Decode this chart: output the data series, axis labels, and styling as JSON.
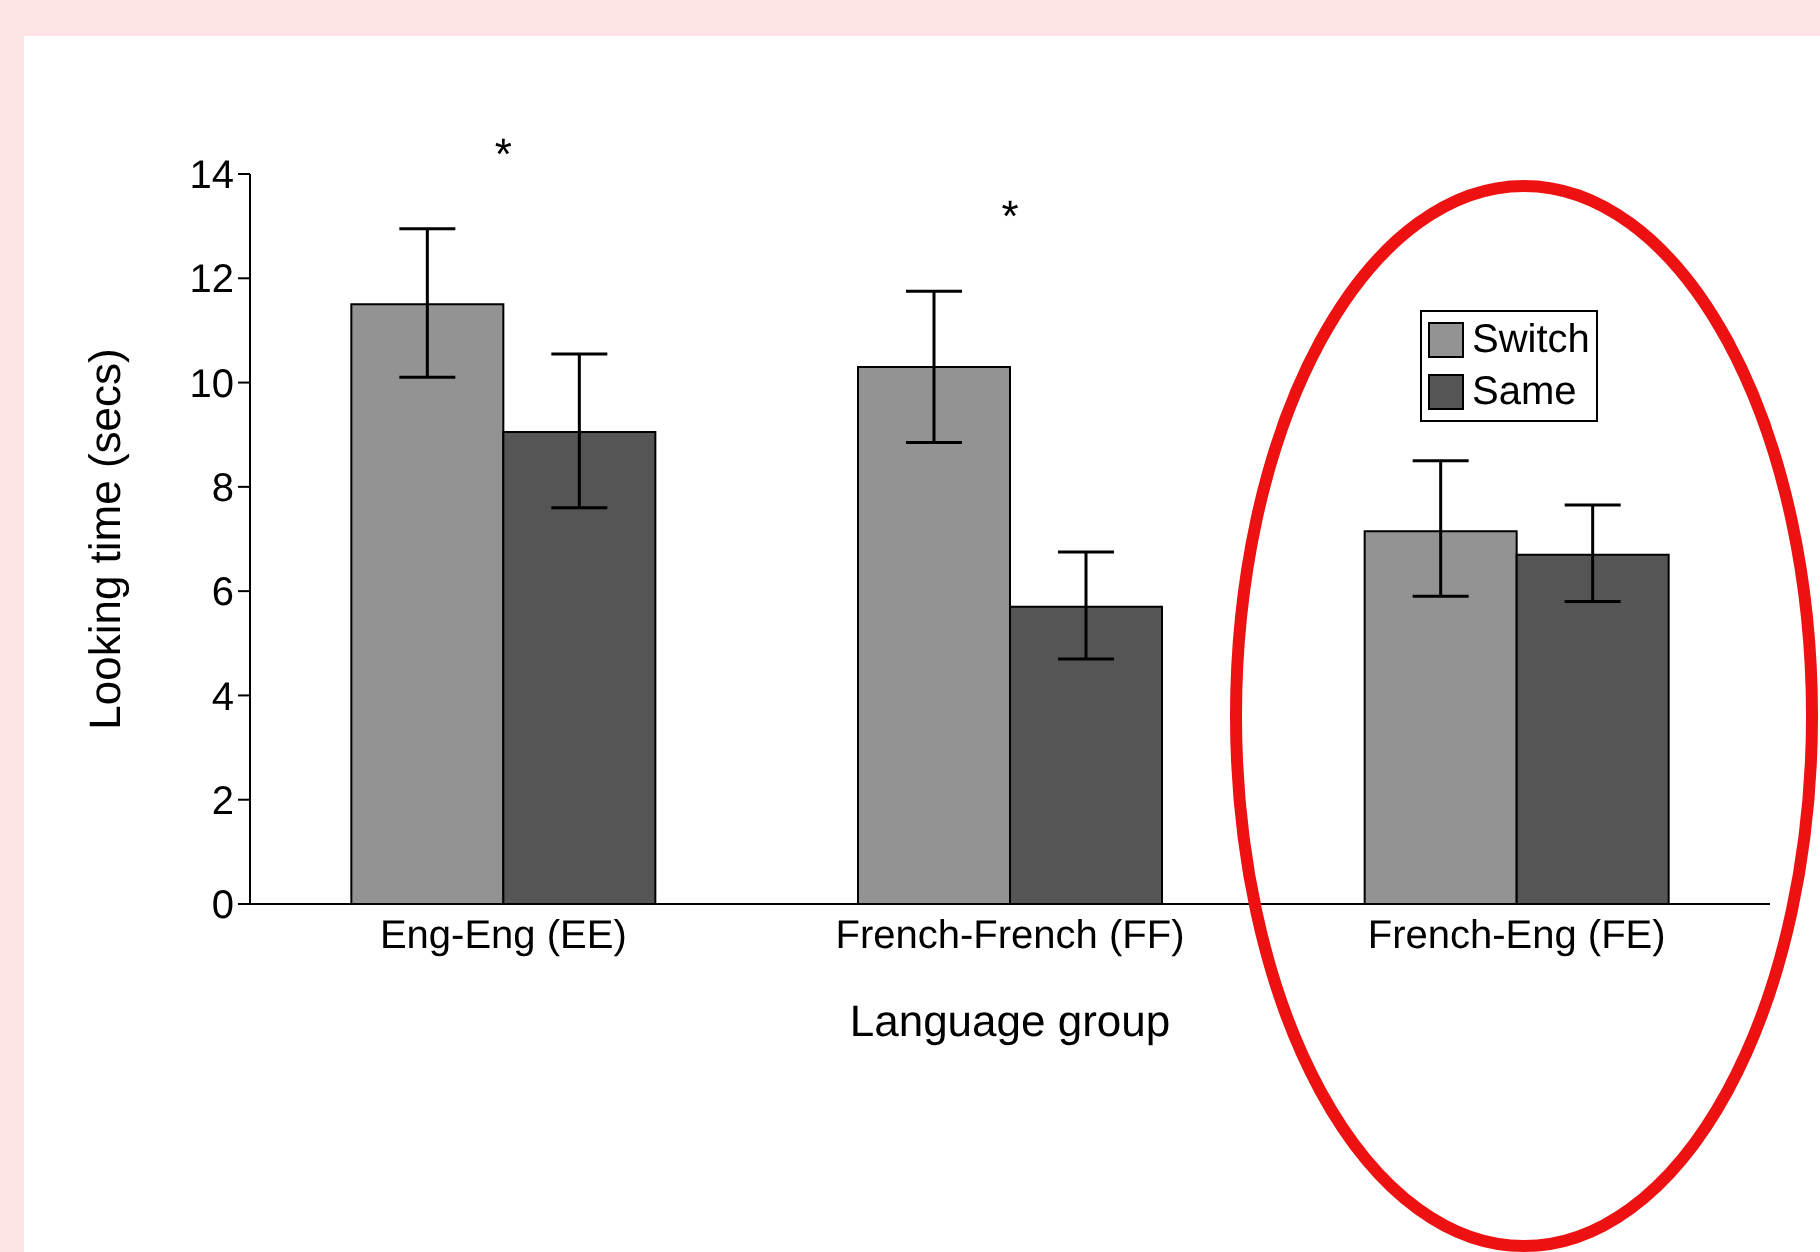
{
  "chart_data": {
    "type": "bar",
    "xlabel": "Language group",
    "ylabel": "Looking time (secs)",
    "categories": [
      "Eng-Eng (EE)",
      "French-French (FF)",
      "French-Eng (FE)"
    ],
    "series": [
      {
        "name": "Switch",
        "color": "#939393",
        "values": [
          11.5,
          10.3,
          7.15
        ],
        "errors": [
          [
            10.1,
            12.95
          ],
          [
            8.85,
            11.75
          ],
          [
            5.9,
            8.5
          ]
        ]
      },
      {
        "name": "Same",
        "color": "#555555",
        "values": [
          9.05,
          5.7,
          6.7
        ],
        "errors": [
          [
            7.6,
            10.55
          ],
          [
            4.7,
            6.75
          ],
          [
            5.8,
            7.65
          ]
        ]
      }
    ],
    "ylim": [
      0,
      14
    ],
    "yticks": [
      0,
      2,
      4,
      6,
      8,
      10,
      12,
      14
    ],
    "grid": false,
    "legend": "top right",
    "annotations": [
      "*",
      "*"
    ]
  }
}
